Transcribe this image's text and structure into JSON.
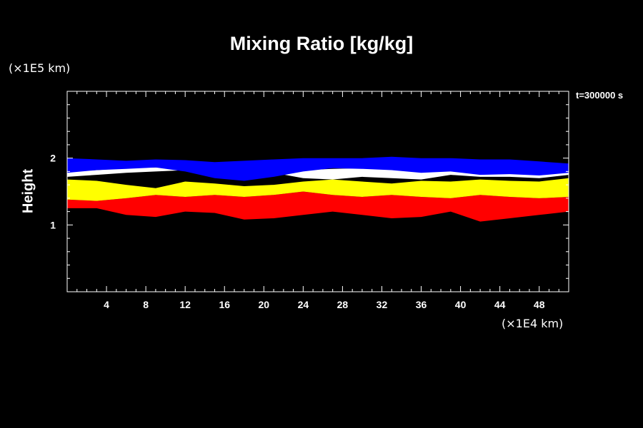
{
  "chart_data": {
    "type": "heatmap",
    "title": "Mixing Ratio [kg/kg]",
    "xlabel": "",
    "ylabel": "Height",
    "x_unit": "(×1E4 km)",
    "y_unit": "(×1E5 km)",
    "time_label": "t=300000 s",
    "xlim": [
      0,
      51
    ],
    "ylim": [
      0,
      3
    ],
    "x_ticks": [
      4,
      8,
      12,
      16,
      20,
      24,
      28,
      32,
      36,
      40,
      44,
      48
    ],
    "y_ticks": [
      1,
      2
    ],
    "colors": {
      "red": "#ff0000",
      "yellow": "#ffff00",
      "green": "#00ff00",
      "white": "#ffffff",
      "blue": "#0000ff",
      "background": "#000000"
    },
    "bands": [
      {
        "color": "red",
        "x_range": [
          0,
          51
        ],
        "bottom": [
          1.25,
          1.25,
          1.15,
          1.12,
          1.2,
          1.18,
          1.08,
          1.1,
          1.15,
          1.2,
          1.15,
          1.1,
          1.12,
          1.2,
          1.05,
          1.1,
          1.15,
          1.2
        ],
        "top": [
          1.38,
          1.36,
          1.4,
          1.45,
          1.42,
          1.45,
          1.42,
          1.45,
          1.5,
          1.45,
          1.42,
          1.45,
          1.42,
          1.4,
          1.45,
          1.42,
          1.4,
          1.42
        ]
      },
      {
        "color": "yellow",
        "x_range": [
          0,
          51
        ],
        "bottom": [
          1.38,
          1.36,
          1.4,
          1.45,
          1.42,
          1.45,
          1.42,
          1.45,
          1.5,
          1.45,
          1.42,
          1.45,
          1.42,
          1.4,
          1.45,
          1.42,
          1.4,
          1.42
        ],
        "top": [
          1.68,
          1.66,
          1.6,
          1.55,
          1.65,
          1.62,
          1.58,
          1.6,
          1.65,
          1.68,
          1.65,
          1.62,
          1.66,
          1.65,
          1.68,
          1.66,
          1.65,
          1.7
        ]
      },
      {
        "color": "white",
        "x_range": [
          0,
          51
        ],
        "bottom": [
          1.72,
          1.75,
          1.78,
          1.8,
          1.82,
          1.8,
          1.82,
          1.78,
          1.7,
          1.68,
          1.72,
          1.7,
          1.68,
          1.75,
          1.72,
          1.72,
          1.7,
          1.75
        ],
        "top": [
          1.8,
          1.82,
          1.85,
          1.86,
          1.85,
          1.84,
          1.86,
          1.85,
          1.82,
          1.84,
          1.85,
          1.84,
          1.82,
          1.85,
          1.8,
          1.82,
          1.8,
          1.8
        ]
      },
      {
        "color": "blue",
        "x_range": [
          0,
          51
        ],
        "bottom": [
          1.78,
          1.82,
          1.84,
          1.86,
          1.8,
          1.7,
          1.66,
          1.72,
          1.8,
          1.85,
          1.84,
          1.82,
          1.78,
          1.8,
          1.75,
          1.76,
          1.74,
          1.78
        ],
        "top": [
          2.0,
          1.98,
          1.96,
          1.98,
          1.97,
          1.94,
          1.96,
          1.98,
          2.0,
          2.0,
          2.0,
          2.02,
          2.0,
          2.0,
          1.98,
          1.98,
          1.95,
          1.92
        ]
      }
    ]
  }
}
